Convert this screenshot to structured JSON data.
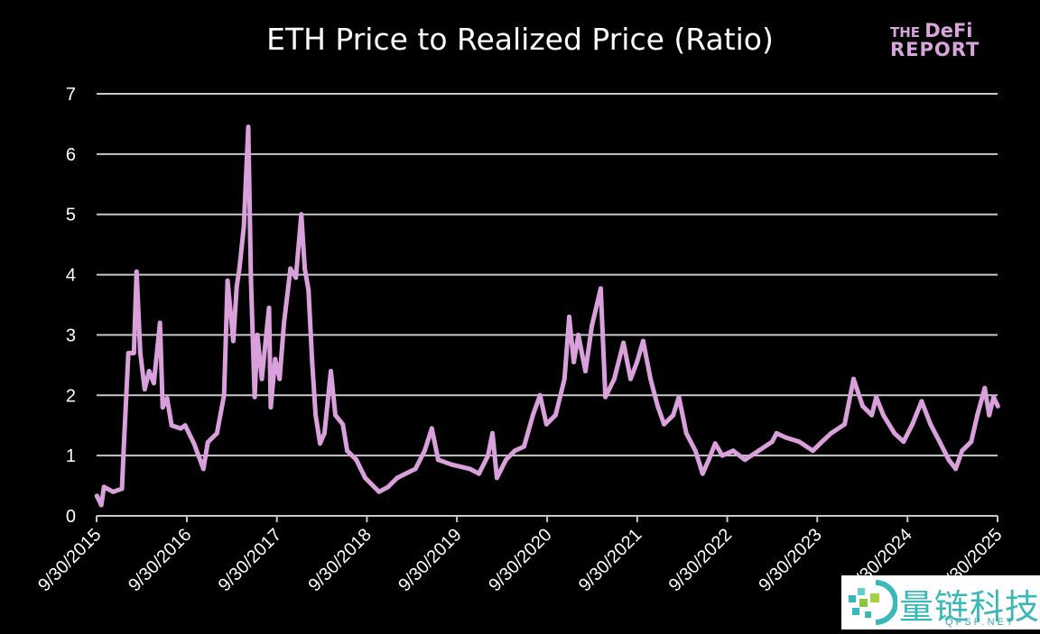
{
  "chart_data": {
    "type": "line",
    "title": "ETH Price to Realized Price (Ratio)",
    "xlabel": "",
    "ylabel": "",
    "ylim": [
      0,
      7
    ],
    "xlim": [
      "2015-09-30",
      "2025-09-30"
    ],
    "yticks": [
      "0",
      "1",
      "2",
      "3",
      "4",
      "5",
      "6",
      "7"
    ],
    "xticks": [
      {
        "date": "2015-09-30",
        "label": "9/30/2015"
      },
      {
        "date": "2016-09-30",
        "label": "9/30/2016"
      },
      {
        "date": "2017-09-30",
        "label": "9/30/2017"
      },
      {
        "date": "2018-09-30",
        "label": "9/30/2018"
      },
      {
        "date": "2019-09-30",
        "label": "9/30/2019"
      },
      {
        "date": "2020-09-30",
        "label": "9/30/2020"
      },
      {
        "date": "2021-09-30",
        "label": "9/30/2021"
      },
      {
        "date": "2022-09-30",
        "label": "9/30/2022"
      },
      {
        "date": "2023-09-30",
        "label": "9/30/2023"
      },
      {
        "date": "2024-09-30",
        "label": "9/30/2024"
      },
      {
        "date": "2025-09-30",
        "label": "9/30/2025"
      }
    ],
    "grid": "horizontal",
    "legend": "none",
    "line_color": "#d9a0dc",
    "grid_color": "#c8c8c8",
    "series": [
      {
        "points": [
          [
            "2015-10-01",
            0.33
          ],
          [
            "2015-10-19",
            0.18
          ],
          [
            "2015-10-30",
            0.48
          ],
          [
            "2015-12-06",
            0.4
          ],
          [
            "2016-01-11",
            0.45
          ],
          [
            "2016-01-19",
            1.2
          ],
          [
            "2016-02-06",
            2.7
          ],
          [
            "2016-02-28",
            2.7
          ],
          [
            "2016-03-10",
            4.05
          ],
          [
            "2016-03-25",
            2.7
          ],
          [
            "2016-04-12",
            2.1
          ],
          [
            "2016-04-30",
            2.4
          ],
          [
            "2016-05-19",
            2.2
          ],
          [
            "2016-06-13",
            3.2
          ],
          [
            "2016-06-24",
            1.8
          ],
          [
            "2016-07-12",
            1.95
          ],
          [
            "2016-07-30",
            1.5
          ],
          [
            "2016-09-05",
            1.45
          ],
          [
            "2016-09-23",
            1.5
          ],
          [
            "2016-10-29",
            1.2
          ],
          [
            "2016-12-06",
            0.78
          ],
          [
            "2016-12-24",
            1.22
          ],
          [
            "2017-01-30",
            1.37
          ],
          [
            "2017-02-28",
            2.0
          ],
          [
            "2017-03-14",
            3.9
          ],
          [
            "2017-04-06",
            2.9
          ],
          [
            "2017-04-20",
            3.8
          ],
          [
            "2017-05-01",
            4.1
          ],
          [
            "2017-05-19",
            4.8
          ],
          [
            "2017-06-06",
            6.45
          ],
          [
            "2017-06-17",
            3.9
          ],
          [
            "2017-07-02",
            1.97
          ],
          [
            "2017-07-13",
            3.0
          ],
          [
            "2017-07-31",
            2.27
          ],
          [
            "2017-08-29",
            3.45
          ],
          [
            "2017-09-05",
            1.8
          ],
          [
            "2017-09-23",
            2.6
          ],
          [
            "2017-10-11",
            2.27
          ],
          [
            "2017-10-29",
            3.2
          ],
          [
            "2017-11-24",
            4.1
          ],
          [
            "2017-12-16",
            3.95
          ],
          [
            "2018-01-07",
            5.0
          ],
          [
            "2018-01-21",
            4.1
          ],
          [
            "2018-02-05",
            3.75
          ],
          [
            "2018-02-20",
            2.55
          ],
          [
            "2018-03-06",
            1.67
          ],
          [
            "2018-03-24",
            1.2
          ],
          [
            "2018-04-11",
            1.37
          ],
          [
            "2018-05-07",
            2.4
          ],
          [
            "2018-05-25",
            1.67
          ],
          [
            "2018-06-24",
            1.52
          ],
          [
            "2018-07-12",
            1.08
          ],
          [
            "2018-08-18",
            0.93
          ],
          [
            "2018-09-23",
            0.63
          ],
          [
            "2018-11-18",
            0.4
          ],
          [
            "2018-12-25",
            0.48
          ],
          [
            "2019-01-31",
            0.63
          ],
          [
            "2019-04-15",
            0.78
          ],
          [
            "2019-05-22",
            1.08
          ],
          [
            "2019-06-20",
            1.45
          ],
          [
            "2019-07-16",
            0.93
          ],
          [
            "2019-09-09",
            0.85
          ],
          [
            "2019-11-21",
            0.78
          ],
          [
            "2019-12-28",
            0.7
          ],
          [
            "2020-02-03",
            1.0
          ],
          [
            "2020-02-21",
            1.37
          ],
          [
            "2020-03-10",
            0.63
          ],
          [
            "2020-04-16",
            0.93
          ],
          [
            "2020-05-22",
            1.08
          ],
          [
            "2020-06-28",
            1.15
          ],
          [
            "2020-08-03",
            1.67
          ],
          [
            "2020-09-01",
            2.0
          ],
          [
            "2020-09-27",
            1.52
          ],
          [
            "2020-11-03",
            1.67
          ],
          [
            "2020-12-09",
            2.27
          ],
          [
            "2020-12-28",
            3.3
          ],
          [
            "2021-01-16",
            2.55
          ],
          [
            "2021-02-03",
            3.0
          ],
          [
            "2021-03-04",
            2.4
          ],
          [
            "2021-03-30",
            3.15
          ],
          [
            "2021-05-05",
            3.77
          ],
          [
            "2021-05-24",
            1.97
          ],
          [
            "2021-06-29",
            2.27
          ],
          [
            "2021-08-05",
            2.87
          ],
          [
            "2021-09-03",
            2.27
          ],
          [
            "2021-09-29",
            2.55
          ],
          [
            "2021-10-24",
            2.9
          ],
          [
            "2021-11-23",
            2.27
          ],
          [
            "2021-12-22",
            1.82
          ],
          [
            "2022-01-17",
            1.52
          ],
          [
            "2022-02-23",
            1.67
          ],
          [
            "2022-03-18",
            1.97
          ],
          [
            "2022-04-17",
            1.37
          ],
          [
            "2022-05-24",
            1.08
          ],
          [
            "2022-06-22",
            0.7
          ],
          [
            "2022-07-17",
            0.93
          ],
          [
            "2022-08-12",
            1.2
          ],
          [
            "2022-09-10",
            1.0
          ],
          [
            "2022-10-24",
            1.08
          ],
          [
            "2022-12-11",
            0.93
          ],
          [
            "2023-02-04",
            1.08
          ],
          [
            "2023-03-31",
            1.23
          ],
          [
            "2023-04-18",
            1.37
          ],
          [
            "2023-05-25",
            1.3
          ],
          [
            "2023-07-19",
            1.23
          ],
          [
            "2023-09-12",
            1.08
          ],
          [
            "2023-10-19",
            1.23
          ],
          [
            "2023-11-25",
            1.37
          ],
          [
            "2024-01-19",
            1.52
          ],
          [
            "2024-02-24",
            2.27
          ],
          [
            "2024-04-01",
            1.82
          ],
          [
            "2024-05-08",
            1.67
          ],
          [
            "2024-05-26",
            1.97
          ],
          [
            "2024-06-24",
            1.67
          ],
          [
            "2024-08-08",
            1.37
          ],
          [
            "2024-09-14",
            1.23
          ],
          [
            "2024-10-20",
            1.52
          ],
          [
            "2024-11-26",
            1.9
          ],
          [
            "2025-01-01",
            1.52
          ],
          [
            "2025-02-07",
            1.23
          ],
          [
            "2025-03-16",
            0.93
          ],
          [
            "2025-04-13",
            0.78
          ],
          [
            "2025-05-09",
            1.08
          ],
          [
            "2025-06-15",
            1.23
          ],
          [
            "2025-07-10",
            1.67
          ],
          [
            "2025-08-09",
            2.12
          ],
          [
            "2025-08-27",
            1.67
          ],
          [
            "2025-09-14",
            1.97
          ],
          [
            "2025-10-01",
            1.82
          ]
        ]
      }
    ]
  },
  "logo": {
    "line1_small": "THE",
    "line1_big": "DeFi",
    "line2": "REPORT",
    "color": "#d9a5dd"
  },
  "watermark": {
    "chinese": "量链科技",
    "site": "QFSP.NET",
    "color": "#3ab8b8"
  }
}
